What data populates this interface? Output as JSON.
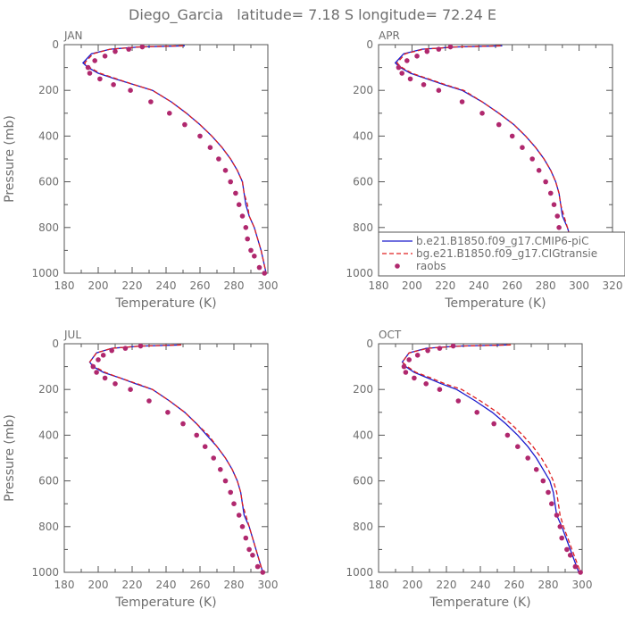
{
  "figure": {
    "title": "Diego_Garcia   latitude= 7.18 S longitude= 72.24 E"
  },
  "legend": {
    "placement": "lower-right of APR panel",
    "entries": [
      {
        "label": "b.e21.B1850.f09_g17.CMIP6-piC",
        "style": "solid-line",
        "color": "#1a1acc"
      },
      {
        "label": "bg.e21.B1850.f09_g17.CIGtransie",
        "style": "dashed-line",
        "color": "#e02020"
      },
      {
        "label": "raobs",
        "style": "dot",
        "color": "#b0286e"
      }
    ]
  },
  "chart_data": [
    {
      "type": "line",
      "title": "JAN",
      "xlabel": "Temperature (K)",
      "ylabel": "Pressure (mb)",
      "xlim": [
        180,
        300
      ],
      "ylim": [
        1000,
        0
      ],
      "xticks": [
        180,
        200,
        220,
        240,
        260,
        280,
        300
      ],
      "yticks": [
        0,
        200,
        400,
        600,
        800,
        1000
      ],
      "series": [
        {
          "name": "b.e21.B1850.f09_g17.CMIP6-piC",
          "color": "#1a1acc",
          "dash": false,
          "x": [
            251,
            224,
            207,
            196,
            191,
            194,
            200,
            210,
            221,
            232,
            243,
            252,
            260,
            267,
            273,
            278,
            282,
            285,
            286,
            287,
            289,
            292,
            296,
            299
          ],
          "y": [
            5,
            10,
            20,
            40,
            80,
            100,
            125,
            150,
            175,
            200,
            250,
            300,
            350,
            400,
            450,
            500,
            550,
            600,
            650,
            700,
            750,
            800,
            900,
            1000
          ]
        },
        {
          "name": "bg.e21.B1850.f09_g17.CIGtransie",
          "color": "#e02020",
          "dash": true,
          "x": [
            250,
            224,
            207,
            197,
            192,
            195,
            201,
            211,
            221,
            232,
            243,
            252,
            260,
            267,
            273,
            278,
            282,
            285,
            286,
            288,
            289,
            292,
            296,
            299
          ],
          "y": [
            5,
            10,
            20,
            40,
            80,
            100,
            125,
            150,
            175,
            200,
            250,
            300,
            350,
            400,
            450,
            500,
            550,
            600,
            650,
            700,
            750,
            800,
            900,
            1000
          ]
        },
        {
          "name": "raobs",
          "color": "#b0286e",
          "marker": "dot",
          "x": [
            226,
            218,
            210,
            204,
            198,
            194,
            195,
            201,
            209,
            219,
            231,
            242,
            251,
            260,
            266,
            271,
            275,
            278,
            281,
            283,
            285,
            287,
            288,
            290,
            292,
            295,
            298
          ],
          "y": [
            10,
            20,
            30,
            50,
            70,
            100,
            125,
            150,
            175,
            200,
            250,
            300,
            350,
            400,
            450,
            500,
            550,
            600,
            650,
            700,
            750,
            800,
            850,
            900,
            925,
            975,
            1000
          ]
        }
      ]
    },
    {
      "type": "line",
      "title": "APR",
      "xlabel": "Temperature (K)",
      "ylabel": "",
      "xlim": [
        180,
        320
      ],
      "ylim": [
        1000,
        0
      ],
      "xticks": [
        180,
        200,
        220,
        240,
        260,
        280,
        300,
        320
      ],
      "yticks": [
        0,
        200,
        400,
        600,
        800,
        1000
      ],
      "series": [
        {
          "name": "b.e21.B1850.f09_g17.CMIP6-piC",
          "color": "#1a1acc",
          "dash": false,
          "x": [
            254,
            226,
            206,
            195,
            190,
            193,
            199,
            209,
            219,
            230,
            242,
            252,
            261,
            268,
            274,
            279,
            283,
            286,
            288,
            289,
            290,
            293,
            297,
            300
          ],
          "y": [
            5,
            10,
            20,
            40,
            80,
            100,
            125,
            150,
            175,
            200,
            250,
            300,
            350,
            400,
            450,
            500,
            550,
            600,
            650,
            700,
            750,
            800,
            900,
            1000
          ]
        },
        {
          "name": "bg.e21.B1850.f09_g17.CIGtransie",
          "color": "#e02020",
          "dash": true,
          "x": [
            253,
            226,
            207,
            196,
            191,
            194,
            200,
            210,
            220,
            231,
            242,
            252,
            261,
            268,
            274,
            279,
            283,
            286,
            288,
            289,
            291,
            293,
            297,
            300
          ],
          "y": [
            5,
            10,
            20,
            40,
            80,
            100,
            125,
            150,
            175,
            200,
            250,
            300,
            350,
            400,
            450,
            500,
            550,
            600,
            650,
            700,
            750,
            800,
            900,
            1000
          ]
        },
        {
          "name": "raobs",
          "color": "#b0286e",
          "marker": "dot",
          "x": [
            223,
            216,
            209,
            203,
            197,
            192,
            194,
            199,
            207,
            216,
            230,
            242,
            252,
            260,
            266,
            272,
            276,
            280,
            283,
            285,
            287,
            288,
            290,
            292,
            294,
            297,
            300
          ],
          "y": [
            10,
            20,
            30,
            50,
            70,
            100,
            125,
            150,
            175,
            200,
            250,
            300,
            350,
            400,
            450,
            500,
            550,
            600,
            650,
            700,
            750,
            800,
            850,
            900,
            925,
            975,
            1000
          ]
        }
      ]
    },
    {
      "type": "line",
      "title": "JUL",
      "xlabel": "Temperature (K)",
      "ylabel": "Pressure (mb)",
      "xlim": [
        180,
        300
      ],
      "ylim": [
        1000,
        0
      ],
      "xticks": [
        180,
        200,
        220,
        240,
        260,
        280,
        300
      ],
      "yticks": [
        0,
        200,
        400,
        600,
        800,
        1000
      ],
      "series": [
        {
          "name": "b.e21.B1850.f09_g17.CMIP6-piC",
          "color": "#1a1acc",
          "dash": false,
          "x": [
            249,
            225,
            208,
            199,
            195,
            197,
            203,
            213,
            222,
            232,
            242,
            251,
            258,
            264,
            270,
            275,
            279,
            282,
            284,
            285,
            286,
            289,
            293,
            297
          ],
          "y": [
            5,
            10,
            20,
            40,
            80,
            100,
            125,
            150,
            175,
            200,
            250,
            300,
            350,
            400,
            450,
            500,
            550,
            600,
            650,
            700,
            750,
            800,
            900,
            1000
          ]
        },
        {
          "name": "bg.e21.B1850.f09_g17.CIGtransie",
          "color": "#e02020",
          "dash": true,
          "x": [
            249,
            225,
            208,
            199,
            195,
            198,
            204,
            213,
            223,
            232,
            242,
            251,
            258,
            265,
            270,
            275,
            279,
            282,
            284,
            285,
            287,
            289,
            293,
            297
          ],
          "y": [
            5,
            10,
            20,
            40,
            80,
            100,
            125,
            150,
            175,
            200,
            250,
            300,
            350,
            400,
            450,
            500,
            550,
            600,
            650,
            700,
            750,
            800,
            900,
            1000
          ]
        },
        {
          "name": "raobs",
          "color": "#b0286e",
          "marker": "dot",
          "x": [
            225,
            216,
            208,
            203,
            200,
            197,
            199,
            204,
            210,
            219,
            230,
            241,
            250,
            258,
            263,
            268,
            272,
            275,
            278,
            280,
            283,
            285,
            287,
            289,
            291,
            294,
            297
          ],
          "y": [
            10,
            20,
            30,
            50,
            70,
            100,
            125,
            150,
            175,
            200,
            250,
            300,
            350,
            400,
            450,
            500,
            550,
            600,
            650,
            700,
            750,
            800,
            850,
            900,
            925,
            975,
            1000
          ]
        }
      ]
    },
    {
      "type": "line",
      "title": "OCT",
      "xlabel": "Temperature (K)",
      "ylabel": "",
      "xlim": [
        180,
        300
      ],
      "ylim": [
        1000,
        0
      ],
      "xticks": [
        180,
        200,
        220,
        240,
        260,
        280,
        300
      ],
      "yticks": [
        0,
        200,
        400,
        600,
        800,
        1000
      ],
      "series": [
        {
          "name": "b.e21.B1850.f09_g17.CMIP6-piC",
          "color": "#1a1acc",
          "dash": false,
          "x": [
            256,
            227,
            208,
            198,
            194,
            196,
            201,
            209,
            217,
            226,
            237,
            247,
            255,
            262,
            268,
            273,
            277,
            281,
            283,
            284,
            285,
            288,
            293,
            298
          ],
          "y": [
            5,
            10,
            20,
            40,
            80,
            100,
            125,
            150,
            175,
            200,
            250,
            300,
            350,
            400,
            450,
            500,
            550,
            600,
            650,
            700,
            750,
            800,
            900,
            1000
          ]
        },
        {
          "name": "bg.e21.B1850.f09_g17.CIGtransie",
          "color": "#e02020",
          "dash": true,
          "x": [
            258,
            228,
            209,
            198,
            194,
            197,
            202,
            211,
            219,
            229,
            240,
            250,
            258,
            265,
            271,
            276,
            280,
            283,
            285,
            286,
            287,
            289,
            294,
            299
          ],
          "y": [
            5,
            10,
            20,
            40,
            80,
            100,
            125,
            150,
            175,
            200,
            250,
            300,
            350,
            400,
            450,
            500,
            550,
            600,
            650,
            700,
            750,
            800,
            900,
            1000
          ]
        },
        {
          "name": "raobs",
          "color": "#b0286e",
          "marker": "dot",
          "x": [
            224,
            216,
            209,
            203,
            198,
            195,
            196,
            201,
            208,
            216,
            227,
            238,
            248,
            256,
            262,
            268,
            273,
            277,
            280,
            282,
            285,
            287,
            288,
            291,
            293,
            296,
            299
          ],
          "y": [
            10,
            20,
            30,
            50,
            70,
            100,
            125,
            150,
            175,
            200,
            250,
            300,
            350,
            400,
            450,
            500,
            550,
            600,
            650,
            700,
            750,
            800,
            850,
            900,
            925,
            975,
            1000
          ]
        }
      ]
    }
  ]
}
